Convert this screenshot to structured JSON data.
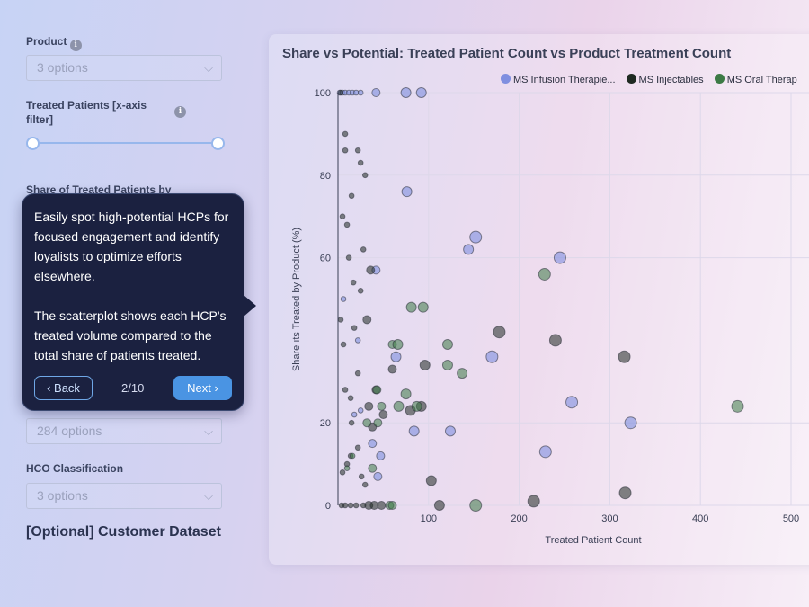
{
  "sidebar": {
    "product": {
      "label": "Product",
      "value": "3 options",
      "info_icon": "i"
    },
    "treated": {
      "label_line1": "Treated Patients [x-axis",
      "label_line2": "filter]",
      "info_icon": "i",
      "slider_range": [
        0,
        1
      ]
    },
    "share_partial_label": "Share of Treated Patients by",
    "hidden_select": {
      "value": "284 options"
    },
    "hco": {
      "label": "HCO Classification",
      "value": "3 options"
    },
    "customer_dataset": "[Optional] Customer Dataset",
    "chevron": "⌵"
  },
  "tooltip": {
    "paragraph1": "Easily spot high-potential HCPs for focused engagement and identify loyalists to optimize efforts elsewhere.",
    "paragraph2": "The scatterplot shows each HCP's treated volume compared to the total share of patients treated.",
    "back_label": "Back",
    "back_icon": "‹",
    "step": "2/10",
    "next_label": "Next",
    "next_icon": "›"
  },
  "chart_data": {
    "type": "scatter",
    "title": "Share vs Potential: Treated Patient Count vs Product Treatment Count",
    "xlabel": "Treated Patient Count",
    "ylabel": "Share ıts Treated by Product (%)",
    "xlim": [
      0,
      520
    ],
    "ylim": [
      0,
      100
    ],
    "x_ticks": [
      "100",
      "200",
      "300",
      "400",
      "500"
    ],
    "y_ticks": [
      "0",
      "20",
      "60",
      "80",
      "100"
    ],
    "y_tick_values": [
      0,
      20,
      60,
      80,
      100
    ],
    "legend_position": "top-right",
    "series": [
      {
        "name": "MS Infusion Therapie...",
        "color": "#7f8fe0",
        "points": [
          [
            2,
            100
          ],
          [
            5,
            100
          ],
          [
            8,
            100
          ],
          [
            12,
            100
          ],
          [
            16,
            100
          ],
          [
            20,
            100
          ],
          [
            25,
            100
          ],
          [
            42,
            100
          ],
          [
            75,
            100
          ],
          [
            92,
            100
          ],
          [
            76,
            76
          ],
          [
            152,
            65
          ],
          [
            144,
            62
          ],
          [
            245,
            60
          ],
          [
            42,
            57
          ],
          [
            258,
            25
          ],
          [
            323,
            20
          ],
          [
            124,
            18
          ],
          [
            84,
            18
          ],
          [
            38,
            15
          ],
          [
            229,
            13
          ],
          [
            47,
            12
          ],
          [
            44,
            7
          ],
          [
            25,
            23
          ],
          [
            22,
            40
          ],
          [
            6,
            50
          ],
          [
            170,
            36
          ],
          [
            64,
            36
          ],
          [
            18,
            22
          ]
        ]
      },
      {
        "name": "MS Injectables",
        "color": "#1f2a22",
        "points": [
          [
            3,
            100
          ],
          [
            8,
            90
          ],
          [
            22,
            86
          ],
          [
            25,
            83
          ],
          [
            8,
            86
          ],
          [
            30,
            80
          ],
          [
            15,
            75
          ],
          [
            5,
            70
          ],
          [
            10,
            68
          ],
          [
            28,
            62
          ],
          [
            12,
            60
          ],
          [
            17,
            54
          ],
          [
            36,
            57
          ],
          [
            25,
            52
          ],
          [
            32,
            45
          ],
          [
            3,
            45
          ],
          [
            18,
            43
          ],
          [
            6,
            39
          ],
          [
            22,
            32
          ],
          [
            8,
            28
          ],
          [
            14,
            26
          ],
          [
            42,
            28
          ],
          [
            50,
            22
          ],
          [
            34,
            24
          ],
          [
            15,
            20
          ],
          [
            22,
            14
          ],
          [
            60,
            33
          ],
          [
            96,
            34
          ],
          [
            38,
            19
          ],
          [
            10,
            10
          ],
          [
            26,
            7
          ],
          [
            30,
            5
          ],
          [
            4,
            0
          ],
          [
            8,
            0
          ],
          [
            14,
            0
          ],
          [
            20,
            0
          ],
          [
            28,
            0
          ],
          [
            34,
            0
          ],
          [
            40,
            0
          ],
          [
            48,
            0
          ],
          [
            112,
            0
          ],
          [
            103,
            6
          ],
          [
            216,
            1
          ],
          [
            317,
            3
          ],
          [
            178,
            42
          ],
          [
            240,
            40
          ],
          [
            316,
            36
          ],
          [
            80,
            23
          ],
          [
            92,
            24
          ],
          [
            14,
            12
          ],
          [
            5,
            8
          ]
        ]
      },
      {
        "name": "MS Oral Therap",
        "color": "#3c7a45",
        "points": [
          [
            228,
            56
          ],
          [
            441,
            24
          ],
          [
            81,
            48
          ],
          [
            94,
            48
          ],
          [
            60,
            39
          ],
          [
            66,
            39
          ],
          [
            121,
            39
          ],
          [
            121,
            34
          ],
          [
            137,
            32
          ],
          [
            43,
            28
          ],
          [
            75,
            27
          ],
          [
            87,
            24
          ],
          [
            67,
            24
          ],
          [
            48,
            24
          ],
          [
            32,
            20
          ],
          [
            16,
            12
          ],
          [
            10,
            9
          ],
          [
            38,
            9
          ],
          [
            44,
            20
          ],
          [
            57,
            0
          ],
          [
            60,
            0
          ],
          [
            152,
            0
          ]
        ]
      }
    ]
  }
}
